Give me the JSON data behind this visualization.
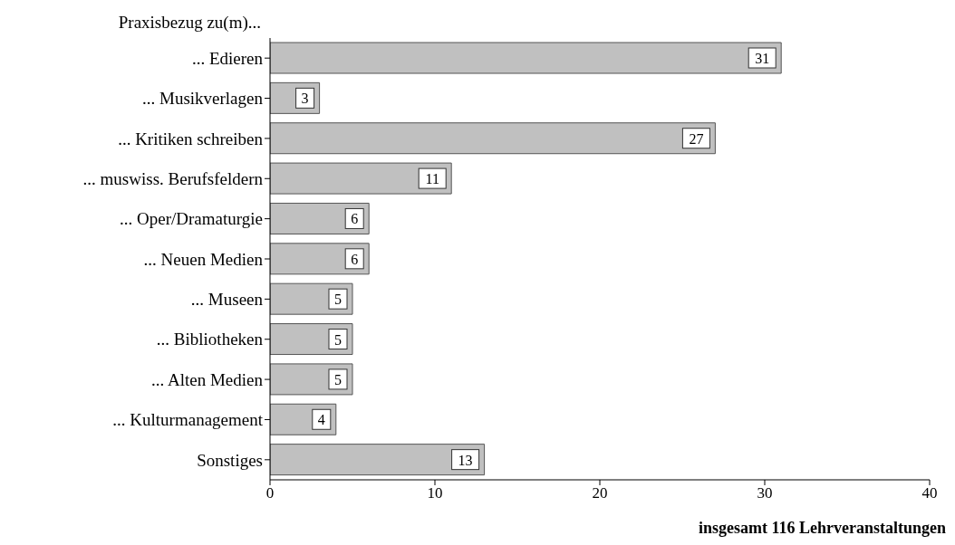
{
  "chart_data": {
    "type": "bar",
    "orientation": "horizontal",
    "title": "Praxisbezug zu(m)...",
    "categories": [
      "... Edieren",
      "... Musikverlagen",
      "... Kritiken schreiben",
      "... muswiss. Berufsfeldern",
      "... Oper/Dramaturgie",
      "... Neuen Medien",
      "... Museen",
      "... Bibliotheken",
      "... Alten Medien",
      "... Kulturmanagement",
      "Sonstiges"
    ],
    "values": [
      31,
      3,
      27,
      11,
      6,
      6,
      5,
      5,
      5,
      4,
      13
    ],
    "color": "#c0c0c0",
    "xlim": [
      0,
      40
    ],
    "xticks": [
      0,
      10,
      20,
      30,
      40
    ],
    "data_labels": true,
    "grid": false,
    "annotations": [
      "insgesamt 116 Lehrveranstaltungen"
    ]
  }
}
